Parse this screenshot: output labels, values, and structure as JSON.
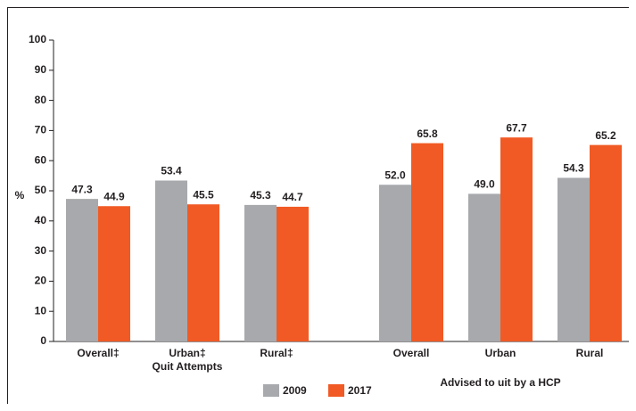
{
  "chart_data": {
    "type": "bar",
    "y_label": "%",
    "categories": [
      "Overall‡",
      "Urban‡",
      "Rural‡",
      null,
      "Overall",
      "Urban",
      "Rural"
    ],
    "groups": [
      {
        "label": "Quit Attempts",
        "categories": [
          0,
          1,
          2
        ]
      },
      {
        "label": "Advised to uit by a HCP",
        "categories": [
          4,
          5,
          6
        ]
      }
    ],
    "series": [
      {
        "name": "2009",
        "color": "#a7a9ac",
        "values": [
          47.3,
          53.4,
          45.3,
          null,
          52.0,
          49.0,
          54.3
        ],
        "value_labels": [
          "47.3",
          "53.4",
          "45.3",
          null,
          "52.0",
          "49.0",
          "54.3"
        ]
      },
      {
        "name": "2017",
        "color": "#f15a24",
        "values": [
          44.9,
          45.5,
          44.7,
          null,
          65.8,
          67.7,
          65.2
        ],
        "value_labels": [
          "44.9",
          "45.5",
          "44.7",
          null,
          "65.8",
          "67.7",
          "65.2"
        ]
      }
    ],
    "ylim": [
      0,
      100
    ],
    "yticks": [
      0,
      10,
      20,
      30,
      40,
      50,
      60,
      70,
      80,
      90,
      100
    ],
    "grid": false
  }
}
